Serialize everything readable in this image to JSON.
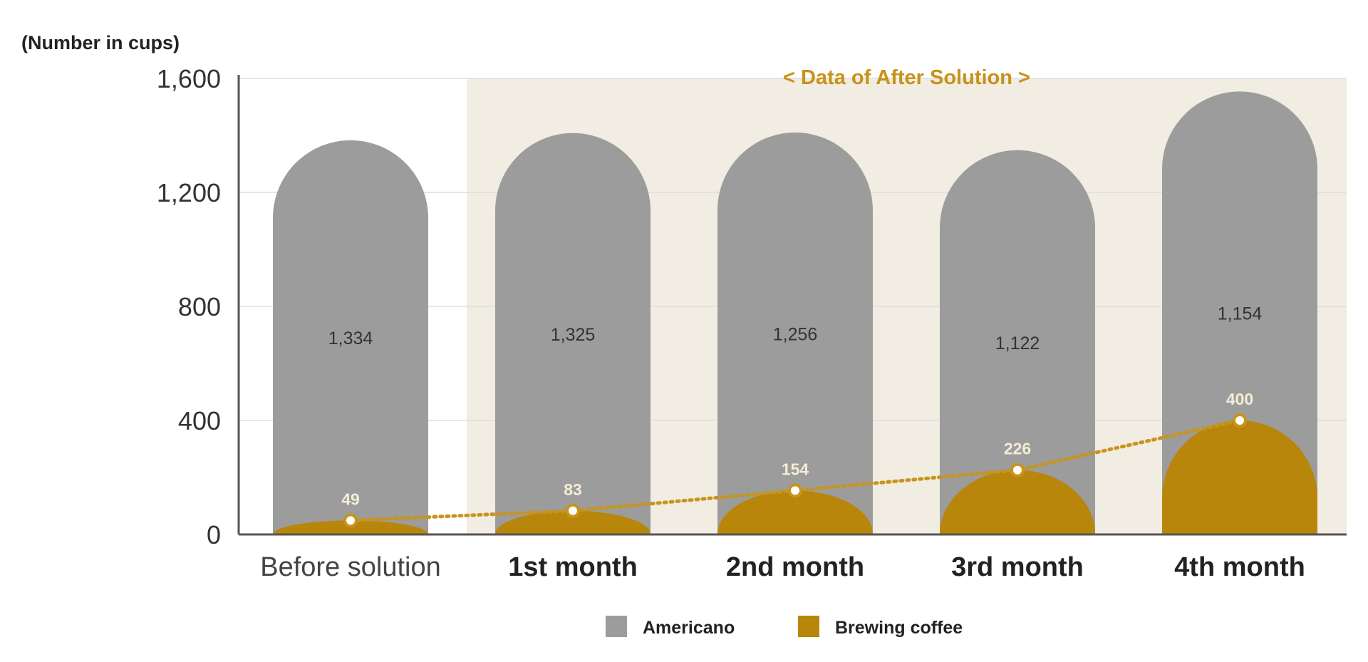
{
  "chart_data": {
    "type": "bar",
    "unit_label": "(Number in cups)",
    "region_label": "< Data of After Solution >",
    "categories": [
      "Before solution",
      "1st month",
      "2nd month",
      "3rd month",
      "4th month"
    ],
    "highlighted_categories": [
      false,
      true,
      true,
      true,
      true
    ],
    "series": [
      {
        "name": "Americano",
        "key": "americano",
        "color": "#9c9c9c",
        "values": [
          1334,
          1325,
          1256,
          1122,
          1154
        ]
      },
      {
        "name": "Brewing coffee",
        "key": "brewing",
        "color": "#b8860b",
        "values": [
          49,
          83,
          154,
          226,
          400
        ]
      }
    ],
    "stack_totals": [
      1383,
      1408,
      1410,
      1348,
      1554
    ],
    "yticks": [
      0,
      400,
      800,
      1200,
      1600
    ],
    "ytick_labels": [
      "0",
      "400",
      "800",
      "1,200",
      "1,600"
    ],
    "ylim": [
      0,
      1600
    ],
    "value_labels": {
      "americano": [
        "1,334",
        "1,325",
        "1,256",
        "1,122",
        "1,154"
      ],
      "brewing": [
        "49",
        "83",
        "154",
        "226",
        "400"
      ]
    },
    "trend_line": {
      "series": "Brewing coffee",
      "style": "dotted"
    },
    "colors": {
      "region_background": "#f1ede2",
      "grid": "#dddddd",
      "axis": "#555555",
      "americano": "#9c9c9c",
      "brewing": "#b8860b",
      "trend": "#c8941c"
    },
    "legend": [
      "Americano",
      "Brewing coffee"
    ],
    "legend_position": "bottom-center"
  }
}
